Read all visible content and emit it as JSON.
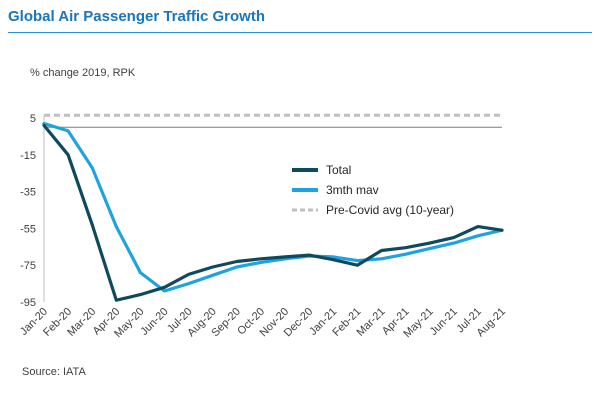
{
  "chart_data": {
    "type": "line",
    "title": "Global Air Passenger Traffic Growth",
    "ylabel": "% change 2019, RPK",
    "source": "Source: IATA",
    "categories": [
      "Jan-20",
      "Feb-20",
      "Mar-20",
      "Apr-20",
      "May-20",
      "Jun-20",
      "Jul-20",
      "Aug-20",
      "Sep-20",
      "Oct-20",
      "Nov-20",
      "Dec-20",
      "Jan-21",
      "Feb-21",
      "Mar-21",
      "Apr-21",
      "May-21",
      "Jun-21",
      "Jul-21",
      "Aug-21"
    ],
    "yticks": [
      5,
      -15,
      -35,
      -55,
      -75,
      -95
    ],
    "ylim": [
      -95,
      5
    ],
    "series": [
      {
        "name": "Total",
        "color": "#0e4a5e",
        "values": [
          1,
          -15,
          -53,
          -94,
          -91,
          -87,
          -80,
          -76,
          -73,
          -71.5,
          -70.5,
          -69.5,
          -72,
          -75,
          -67,
          -65.5,
          -63,
          -60,
          -54,
          -56
        ]
      },
      {
        "name": "3mth mav",
        "color": "#1fa3df",
        "values": [
          2,
          -2,
          -22,
          -54,
          -79,
          -89,
          -85,
          -80.5,
          -76,
          -73.5,
          -71.5,
          -70,
          -70.5,
          -72.5,
          -71.5,
          -69,
          -66,
          -63,
          -59,
          -56
        ]
      },
      {
        "name": "Pre-Covid avg (10-year)",
        "color": "#bfbfbf",
        "dashed": true,
        "values": [
          6.5,
          6.5,
          6.5,
          6.5,
          6.5,
          6.5,
          6.5,
          6.5,
          6.5,
          6.5,
          6.5,
          6.5,
          6.5,
          6.5,
          6.5,
          6.5,
          6.5,
          6.5,
          6.5,
          6.5
        ]
      }
    ],
    "baseline": 0,
    "legend_position": "center-right"
  }
}
